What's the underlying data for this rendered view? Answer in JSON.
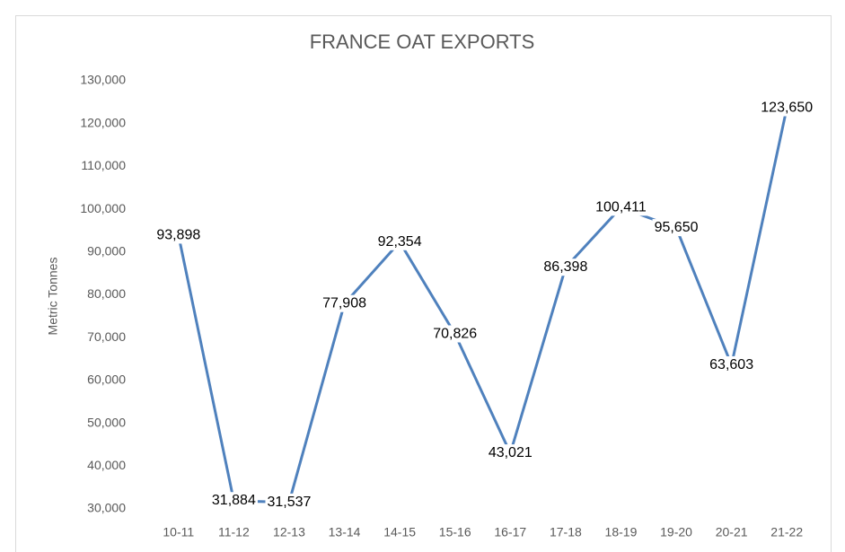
{
  "chart_data": {
    "type": "line",
    "title": "FRANCE OAT EXPORTS",
    "y_label": "Metric Tonnes",
    "categories": [
      "10-11",
      "11-12",
      "12-13",
      "13-14",
      "14-15",
      "15-16",
      "16-17",
      "17-18",
      "18-19",
      "19-20",
      "20-21",
      "21-22"
    ],
    "series": [
      {
        "name": "France Oat Exports",
        "color": "#4f81bd",
        "values": [
          93898,
          31884,
          31537,
          77908,
          92354,
          70826,
          43021,
          86398,
          100411,
          95650,
          63603,
          123650
        ],
        "value_labels": [
          "93,898",
          "31,884",
          "31,537",
          "77,908",
          "92,354",
          "70,826",
          "43,021",
          "86,398",
          "100,411",
          "95,650",
          "63,603",
          "123,650"
        ]
      }
    ],
    "ylim": [
      30000,
      130000
    ],
    "yticks": [
      {
        "value": 30000,
        "label": "30,000"
      },
      {
        "value": 40000,
        "label": "40,000"
      },
      {
        "value": 50000,
        "label": "50,000"
      },
      {
        "value": 60000,
        "label": "60,000"
      },
      {
        "value": 70000,
        "label": "70,000"
      },
      {
        "value": 80000,
        "label": "80,000"
      },
      {
        "value": 90000,
        "label": "90,000"
      },
      {
        "value": 100000,
        "label": "100,000"
      },
      {
        "value": 110000,
        "label": "110,000"
      },
      {
        "value": 120000,
        "label": "120,000"
      },
      {
        "value": 130000,
        "label": "130,000"
      }
    ],
    "grid": false
  }
}
